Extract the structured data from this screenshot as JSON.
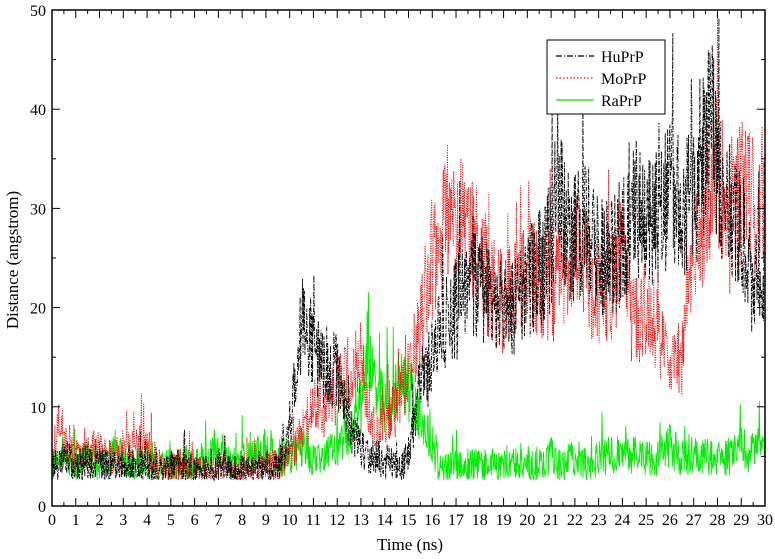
{
  "chart_data": {
    "type": "line",
    "title": "",
    "xlabel": "Time (ns)",
    "ylabel": "Distance (angstrom)",
    "xlim": [
      0,
      30
    ],
    "ylim": [
      0,
      50
    ],
    "x_ticks": [
      0,
      1,
      2,
      3,
      4,
      5,
      6,
      7,
      8,
      9,
      10,
      11,
      12,
      13,
      14,
      15,
      16,
      17,
      18,
      19,
      20,
      21,
      22,
      23,
      24,
      25,
      26,
      27,
      28,
      29,
      30
    ],
    "y_ticks": [
      0,
      10,
      20,
      30,
      40,
      50
    ],
    "grid": false,
    "legend_position": "top-right",
    "series": [
      {
        "name": "HuPrP",
        "color": "#000000",
        "style": "dash-dot",
        "x": [
          0,
          0.5,
          1,
          1.5,
          2,
          2.5,
          3,
          3.5,
          4,
          4.5,
          5,
          5.5,
          6,
          6.5,
          7,
          7.5,
          8,
          8.5,
          9,
          9.5,
          10,
          10.3,
          10.6,
          11,
          11.5,
          12,
          12.5,
          13,
          13.5,
          14,
          14.5,
          15,
          15.5,
          16,
          16.5,
          17,
          17.5,
          18,
          18.5,
          19,
          19.5,
          20,
          20.5,
          21,
          21.3,
          21.6,
          22,
          22.5,
          23,
          23.5,
          24,
          24.5,
          25,
          25.5,
          26,
          26.5,
          27,
          27.5,
          27.8,
          28,
          28.5,
          29,
          29.5,
          30
        ],
        "y": [
          4,
          5,
          4,
          4.5,
          4,
          4,
          3.5,
          4,
          4,
          3.5,
          4,
          4,
          3.5,
          3.5,
          4,
          3.5,
          3.5,
          3.5,
          3.5,
          4,
          7,
          15,
          19,
          16,
          13,
          14,
          8,
          6,
          5,
          4.5,
          4,
          5,
          12,
          15,
          18,
          20,
          21,
          23,
          20,
          21,
          20,
          22,
          24,
          26,
          35,
          28,
          27,
          28,
          26,
          25,
          27,
          30,
          28,
          29,
          32,
          30,
          31,
          36,
          39,
          33,
          30,
          28,
          22,
          25
        ]
      },
      {
        "name": "MoPrP",
        "color": "#ff0000",
        "style": "dotted",
        "x": [
          0,
          0.3,
          0.6,
          1,
          1.5,
          2,
          2.5,
          3,
          3.5,
          4,
          4.5,
          5,
          5.5,
          6,
          6.5,
          7,
          7.5,
          8,
          8.5,
          9,
          9.5,
          10,
          10.5,
          11,
          11.5,
          12,
          12.5,
          13,
          13.5,
          14,
          14.5,
          15,
          15.5,
          16,
          16.5,
          17,
          17.5,
          18,
          18.5,
          19,
          19.5,
          20,
          20.5,
          21,
          21.5,
          22,
          22.5,
          23,
          23.5,
          24,
          24.5,
          25,
          25.5,
          26,
          26.5,
          27,
          27.5,
          28,
          28.5,
          29,
          29.5,
          30
        ],
        "y": [
          4,
          9,
          6,
          5,
          5,
          6,
          5,
          5,
          6,
          6,
          4,
          4,
          4,
          3.5,
          3.5,
          4,
          3.5,
          3.5,
          3.5,
          4,
          4,
          5,
          7,
          10,
          9,
          12,
          13,
          15,
          8,
          8,
          10,
          14,
          18,
          25,
          28,
          30,
          27,
          25,
          22,
          20,
          22,
          24,
          23,
          22,
          24,
          26,
          24,
          20,
          22,
          25,
          18,
          20,
          17,
          16,
          15,
          26,
          30,
          35,
          28,
          32,
          30,
          31
        ]
      },
      {
        "name": "RaPrP",
        "color": "#00ee00",
        "style": "solid",
        "x": [
          0,
          0.5,
          1,
          1.5,
          2,
          2.5,
          3,
          3.5,
          4,
          4.5,
          5,
          5.5,
          6,
          6.5,
          7,
          7.5,
          8,
          8.5,
          9,
          9.5,
          10,
          10.5,
          11,
          11.5,
          12,
          12.5,
          13,
          13.3,
          13.6,
          14,
          14.5,
          15,
          15.5,
          15.8,
          16,
          16.5,
          17,
          17.5,
          18,
          18.5,
          19,
          19.5,
          20,
          20.5,
          21,
          21.5,
          22,
          22.5,
          23,
          23.5,
          24,
          24.5,
          25,
          25.5,
          26,
          26.5,
          27,
          27.5,
          28,
          28.5,
          29,
          29.5,
          30
        ],
        "y": [
          4,
          5,
          4,
          5,
          4,
          5,
          5,
          4,
          5,
          4,
          4,
          4,
          4,
          5,
          6,
          4,
          5,
          5,
          6,
          5,
          5,
          6,
          5,
          5,
          6,
          7,
          10,
          17,
          12,
          10,
          12,
          12,
          9,
          7,
          5,
          4,
          4,
          4,
          4,
          4,
          4,
          4,
          4,
          4,
          5,
          4,
          5,
          4,
          5,
          5,
          6,
          5,
          5,
          5,
          6,
          5,
          5,
          5,
          5,
          5,
          6,
          5,
          6
        ]
      }
    ]
  }
}
